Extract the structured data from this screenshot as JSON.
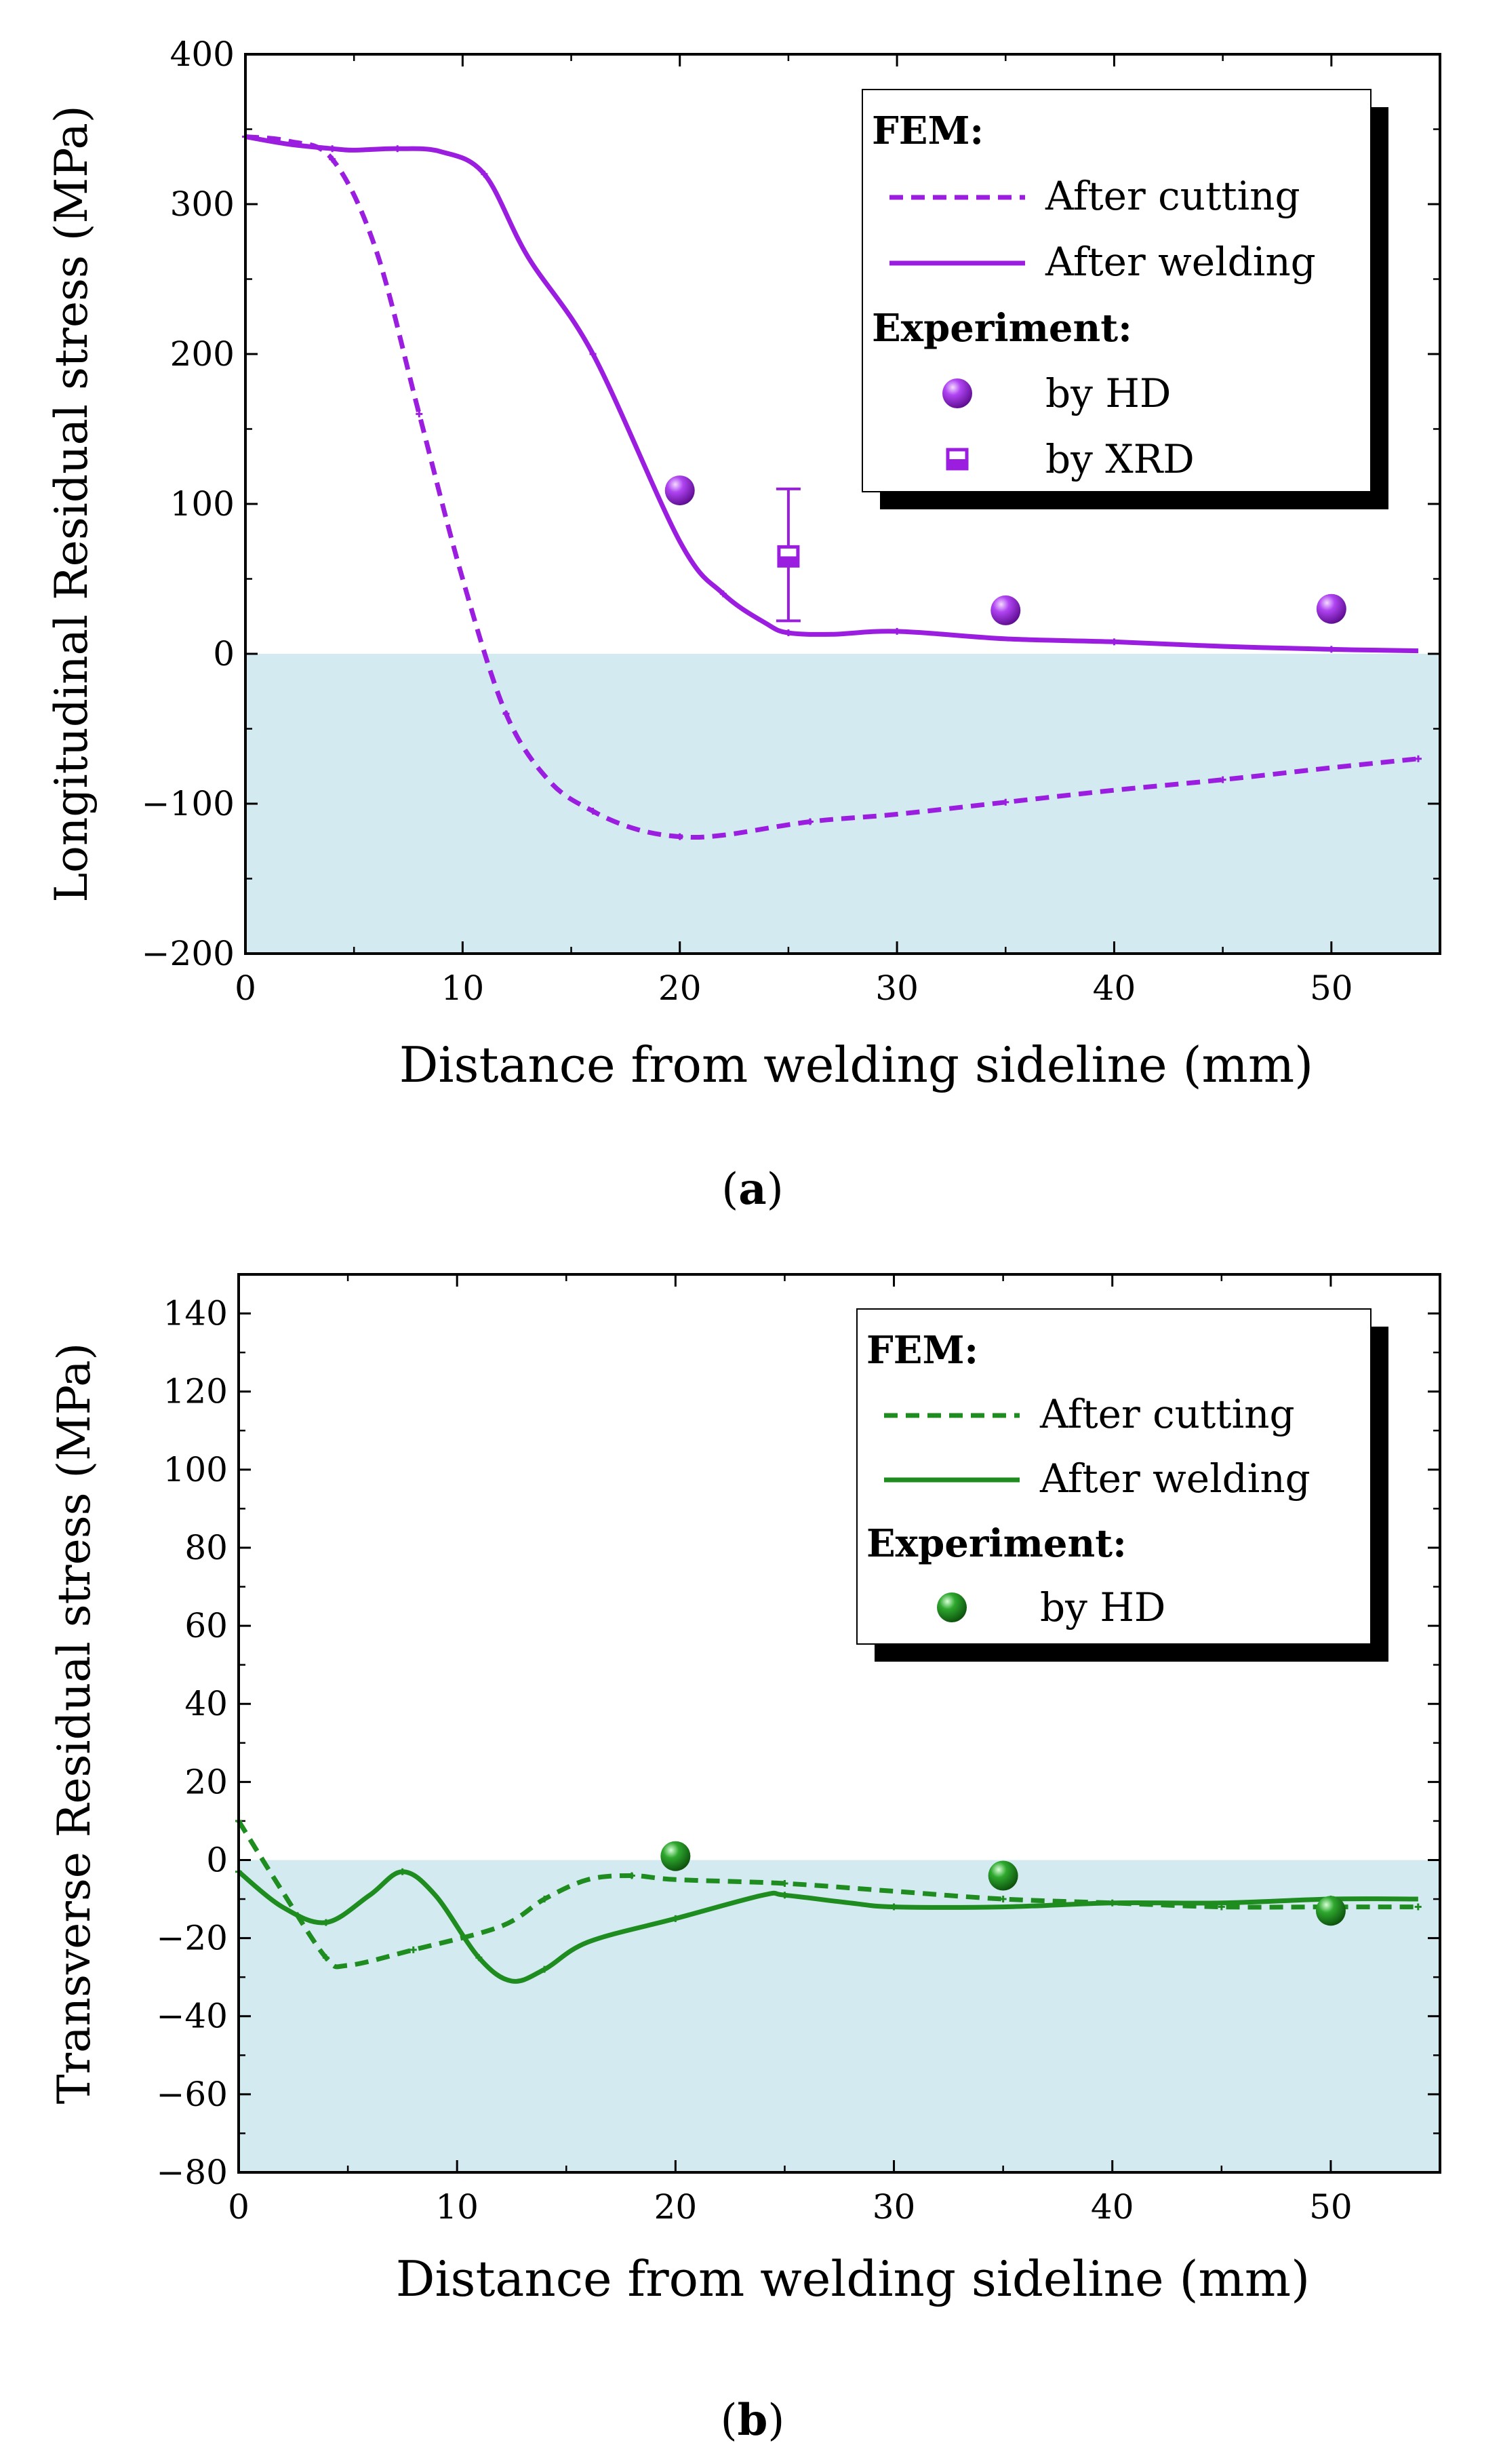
{
  "chart_data": [
    {
      "type": "line",
      "panel_label": "a",
      "xlabel": "Distance from welding sideline (mm)",
      "ylabel": "Longitudinal Residual stress (MPa)",
      "xlim": [
        0,
        55
      ],
      "ylim": [
        -200,
        400
      ],
      "x_ticks": [
        0,
        10,
        20,
        30,
        40,
        50
      ],
      "y_ticks": [
        -200,
        -100,
        0,
        100,
        200,
        300,
        400
      ],
      "y_tick_labels": [
        "−200",
        "−100",
        "0",
        "100",
        "200",
        "300",
        "400"
      ],
      "shaded_region": {
        "from": -200,
        "to": 0,
        "color": "#d3eaf1"
      },
      "color": "#9b1ee0",
      "legend": {
        "fem_title": "FEM:",
        "cutting_label": "After cutting",
        "welding_label": "After welding",
        "exp_title": "Experiment:",
        "hd_label": "by HD",
        "xrd_label": "by XRD"
      },
      "series": [
        {
          "name": "After cutting",
          "style": "dashed",
          "x": [
            0,
            2,
            4,
            6,
            8,
            10,
            12,
            14,
            16,
            18,
            20,
            22,
            26,
            30,
            35,
            40,
            45,
            50,
            54
          ],
          "y": [
            345,
            342,
            330,
            270,
            160,
            50,
            -40,
            -85,
            -105,
            -117,
            -122,
            -121,
            -112,
            -107,
            -99,
            -91,
            -84,
            -76,
            -70
          ]
        },
        {
          "name": "After welding",
          "style": "solid",
          "x": [
            0,
            2,
            4,
            5,
            7,
            9,
            11,
            13,
            16,
            20,
            22,
            24,
            25,
            27,
            30,
            35,
            40,
            45,
            50,
            54
          ],
          "y": [
            345,
            340,
            337,
            336,
            337,
            335,
            320,
            265,
            200,
            75,
            40,
            20,
            14,
            13,
            15,
            10,
            8,
            5,
            3,
            2
          ]
        },
        {
          "name": "by HD",
          "style": "points",
          "x": [
            20,
            35,
            50
          ],
          "y": [
            109,
            29,
            30
          ]
        },
        {
          "name": "by XRD",
          "style": "errorbar",
          "x": [
            25
          ],
          "y": [
            65
          ],
          "y_error": [
            [
              22,
              110
            ]
          ]
        }
      ]
    },
    {
      "type": "line",
      "panel_label": "b",
      "xlabel": "Distance from welding sideline (mm)",
      "ylabel": "Transverse Residual stress (MPa)",
      "xlim": [
        0,
        55
      ],
      "ylim": [
        -80,
        150
      ],
      "x_ticks": [
        0,
        10,
        20,
        30,
        40,
        50
      ],
      "y_ticks": [
        -80,
        -60,
        -40,
        -20,
        0,
        20,
        40,
        60,
        80,
        100,
        120,
        140
      ],
      "y_tick_labels": [
        "−80",
        "−60",
        "−40",
        "−20",
        "0",
        "20",
        "40",
        "60",
        "80",
        "100",
        "120",
        "140"
      ],
      "shaded_region": {
        "from": -80,
        "to": 0,
        "color": "#d3eaf1"
      },
      "color": "#1e8c1e",
      "legend": {
        "fem_title": "FEM:",
        "cutting_label": "After cutting",
        "welding_label": "After welding",
        "exp_title": "Experiment:",
        "hd_label": "by HD"
      },
      "series": [
        {
          "name": "After cutting",
          "style": "dashed",
          "x": [
            0,
            2,
            4,
            5,
            8,
            12,
            14,
            16,
            18,
            20,
            25,
            30,
            35,
            40,
            45,
            50,
            54
          ],
          "y": [
            10,
            -8,
            -25,
            -27,
            -23,
            -17,
            -10,
            -5,
            -4,
            -5,
            -6,
            -8,
            -10,
            -11,
            -12,
            -12,
            -12
          ]
        },
        {
          "name": "After welding",
          "style": "solid",
          "x": [
            0,
            2,
            4,
            6,
            7.5,
            9,
            11,
            12.5,
            14,
            16,
            20,
            24,
            25,
            28,
            30,
            35,
            40,
            45,
            50,
            54
          ],
          "y": [
            -3,
            -12,
            -16,
            -9,
            -3,
            -9,
            -25,
            -31,
            -28,
            -21,
            -15,
            -9,
            -9,
            -11,
            -12,
            -12,
            -11,
            -11,
            -10,
            -10
          ]
        },
        {
          "name": "by HD",
          "style": "points",
          "x": [
            20,
            35,
            50
          ],
          "y": [
            1,
            -4,
            -13
          ]
        }
      ]
    }
  ]
}
